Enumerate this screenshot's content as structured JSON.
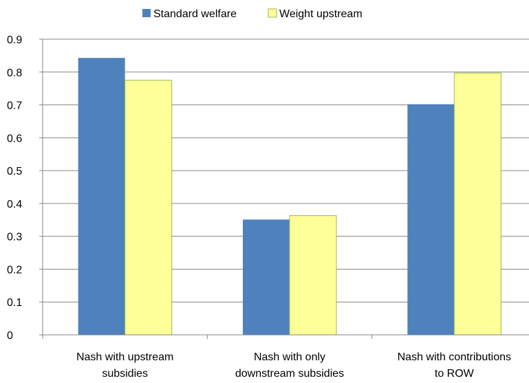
{
  "chart_data": {
    "type": "bar",
    "categories": [
      [
        "Nash with upstream",
        "subsidies"
      ],
      [
        "Nash with only",
        "downstream subsidies"
      ],
      [
        "Nash with contributions",
        "to ROW"
      ]
    ],
    "series": [
      {
        "name": "Standard welfare",
        "values": [
          0.843,
          0.351,
          0.702
        ],
        "color": "#4F81BD"
      },
      {
        "name": "Weight upstream",
        "values": [
          0.775,
          0.363,
          0.797
        ],
        "color": "#FFFF99"
      }
    ],
    "ylim": [
      0,
      0.9
    ],
    "yticks": [
      "0",
      "0.1",
      "0.2",
      "0.3",
      "0.4",
      "0.5",
      "0.6",
      "0.7",
      "0.8",
      "0.9"
    ],
    "grid": true,
    "legend_position": "top"
  }
}
